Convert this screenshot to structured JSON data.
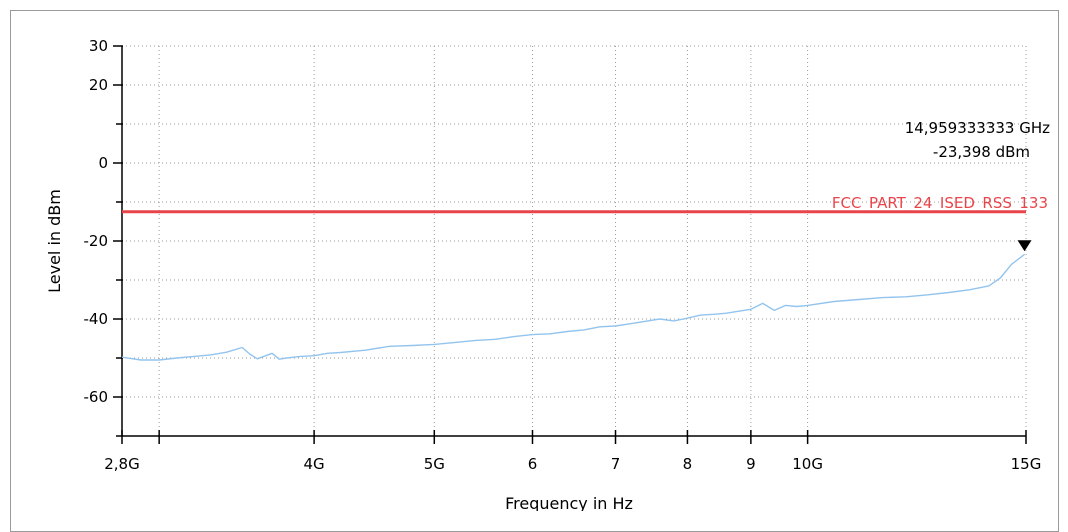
{
  "chart_data": {
    "type": "line",
    "xlabel": "Frequency in Hz",
    "ylabel": "Level in dBm",
    "x_scale": "log",
    "xlim": [
      2.8,
      15
    ],
    "ylim": [
      -70,
      30
    ],
    "grid": true,
    "y_ticks": [
      {
        "value": 30,
        "label": "30"
      },
      {
        "value": 20,
        "label": "20"
      },
      {
        "value": 0,
        "label": "0"
      },
      {
        "value": -20,
        "label": "-20"
      },
      {
        "value": -40,
        "label": "-40"
      },
      {
        "value": -60,
        "label": "-60"
      }
    ],
    "y_minor_ticks": [
      10,
      -10,
      -30,
      -50,
      -70
    ],
    "x_ticks": [
      {
        "value": 2.8,
        "label": "2,8G"
      },
      {
        "value": 3,
        "label": ""
      },
      {
        "value": 4,
        "label": "4G"
      },
      {
        "value": 5,
        "label": "5G"
      },
      {
        "value": 6,
        "label": "6"
      },
      {
        "value": 7,
        "label": "7"
      },
      {
        "value": 8,
        "label": "8"
      },
      {
        "value": 9,
        "label": "9"
      },
      {
        "value": 10,
        "label": "10G"
      },
      {
        "value": 15,
        "label": "15G"
      }
    ],
    "limit_line": {
      "name": "FCC_PART_24_ISED_RSS_133",
      "value": -12.5,
      "color": "#e8454a"
    },
    "series": [
      {
        "color": "#93c4ee",
        "x": [
          2.8,
          2.9,
          3.0,
          3.1,
          3.2,
          3.3,
          3.4,
          3.5,
          3.55,
          3.6,
          3.7,
          3.75,
          3.8,
          3.9,
          4.0,
          4.1,
          4.2,
          4.4,
          4.6,
          4.8,
          5.0,
          5.2,
          5.4,
          5.6,
          5.8,
          6.0,
          6.2,
          6.4,
          6.6,
          6.8,
          7.0,
          7.2,
          7.4,
          7.6,
          7.8,
          8.0,
          8.2,
          8.4,
          8.6,
          8.8,
          9.0,
          9.2,
          9.4,
          9.6,
          9.8,
          10.0,
          10.5,
          11.0,
          11.5,
          12.0,
          12.5,
          13.0,
          13.5,
          14.0,
          14.3,
          14.6,
          14.96
        ],
        "y": [
          -49.8,
          -50.5,
          -50.5,
          -50.0,
          -49.6,
          -49.2,
          -48.5,
          -47.3,
          -49.0,
          -50.2,
          -48.8,
          -50.3,
          -50.0,
          -49.6,
          -49.4,
          -48.8,
          -48.6,
          -48.0,
          -47.0,
          -46.8,
          -46.5,
          -46.0,
          -45.5,
          -45.2,
          -44.5,
          -44.0,
          -43.8,
          -43.2,
          -42.8,
          -42.0,
          -41.8,
          -41.2,
          -40.6,
          -40.0,
          -40.5,
          -39.8,
          -39.0,
          -38.8,
          -38.5,
          -38.0,
          -37.5,
          -36.0,
          -37.8,
          -36.5,
          -36.8,
          -36.5,
          -35.5,
          -35.0,
          -34.5,
          -34.3,
          -33.8,
          -33.2,
          -32.5,
          -31.5,
          -29.5,
          -26.0,
          -23.398
        ]
      }
    ],
    "marker": {
      "x": 14.959333333,
      "y": -23.398,
      "freq_label": "14,959333333 GHz",
      "level_label": "-23,398 dBm"
    }
  }
}
